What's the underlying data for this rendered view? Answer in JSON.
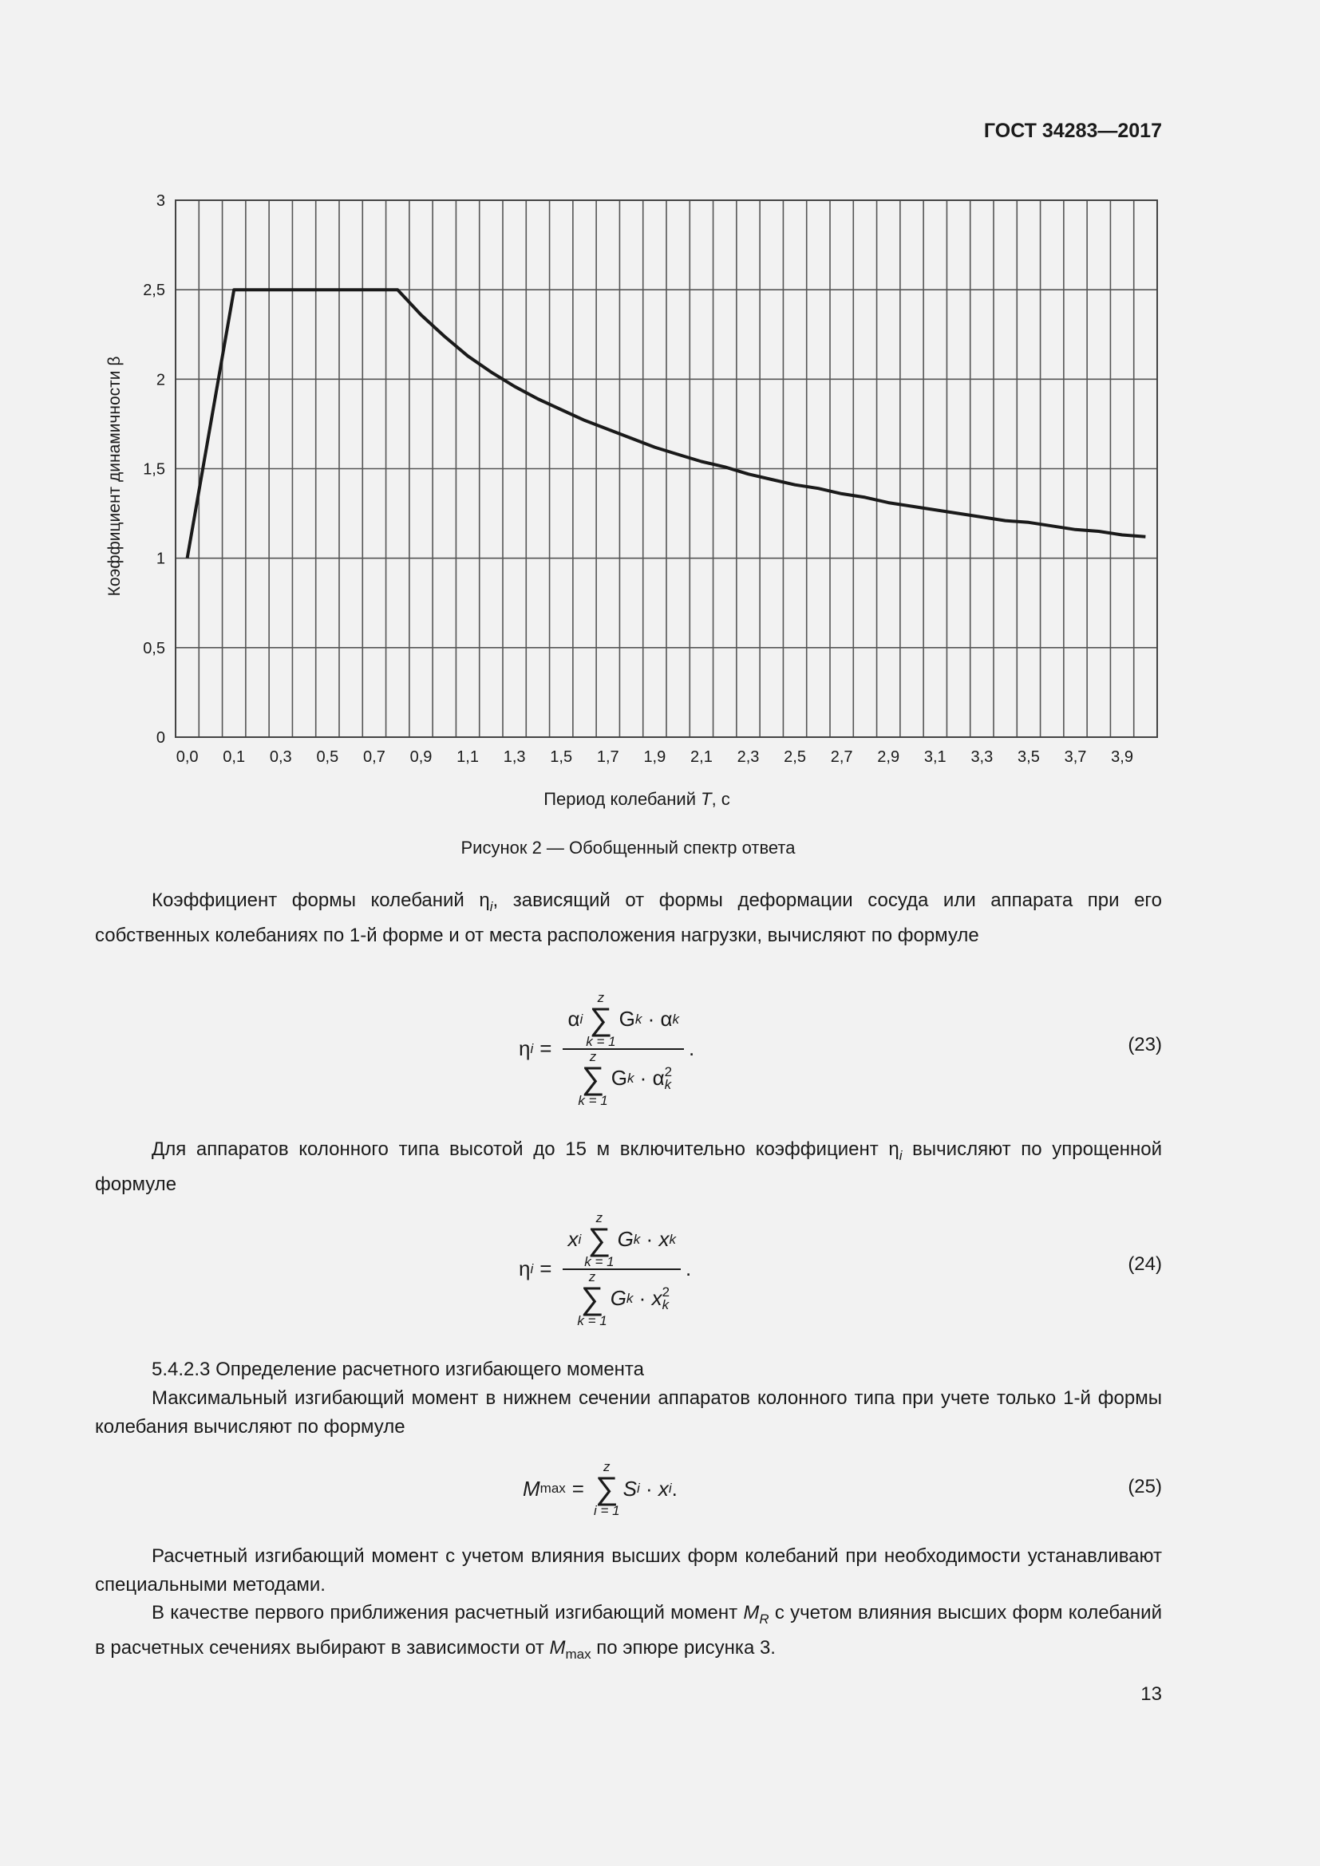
{
  "header": {
    "doc_id": "ГОСТ 34283—2017"
  },
  "figure": {
    "caption": "Рисунок 2 — Обобщенный спектр ответа",
    "chart_data": {
      "type": "line",
      "title": "",
      "xlabel_parts": [
        "Период колебаний ",
        "T",
        ", с"
      ],
      "ylabel": "Коэффициент динамичности β",
      "ylim": [
        0,
        3
      ],
      "yticks": [
        "0",
        "0,5",
        "1",
        "1,5",
        "2",
        "2,5",
        "3"
      ],
      "ytick_values": [
        0,
        0.5,
        1,
        1.5,
        2,
        2.5,
        3
      ],
      "xticks": [
        "0,0",
        "0,1",
        "0,3",
        "0,5",
        "0,7",
        "0,9",
        "1,1",
        "1,3",
        "1,5",
        "1,7",
        "1,9",
        "2,1",
        "2,3",
        "2,5",
        "2,7",
        "2,9",
        "3,1",
        "3,3",
        "3,5",
        "3,7",
        "3,9"
      ],
      "xtick_values": [
        0,
        0.1,
        0.3,
        0.5,
        0.7,
        0.9,
        1.1,
        1.3,
        1.5,
        1.7,
        1.9,
        2.1,
        2.3,
        2.5,
        2.7,
        2.9,
        3.1,
        3.3,
        3.5,
        3.7,
        3.9
      ],
      "grid": true,
      "series": [
        {
          "x": [
            0,
            0.1,
            0.8,
            0.9,
            1.0,
            1.1,
            1.2,
            1.3,
            1.4,
            1.5,
            1.6,
            1.7,
            1.8,
            1.9,
            2.0,
            2.1,
            2.2,
            2.3,
            2.4,
            2.5,
            2.6,
            2.7,
            2.8,
            2.9,
            3.0,
            3.1,
            3.2,
            3.3,
            3.4,
            3.5,
            3.6,
            3.7,
            3.8,
            3.9,
            4.0
          ],
          "y": [
            1,
            2.5,
            2.5,
            2.36,
            2.24,
            2.13,
            2.04,
            1.96,
            1.89,
            1.83,
            1.77,
            1.72,
            1.67,
            1.62,
            1.58,
            1.54,
            1.51,
            1.47,
            1.44,
            1.41,
            1.39,
            1.36,
            1.34,
            1.31,
            1.29,
            1.27,
            1.25,
            1.23,
            1.21,
            1.2,
            1.18,
            1.16,
            1.15,
            1.13,
            1.12
          ],
          "color": "#1a1a1a"
        }
      ]
    }
  },
  "body": {
    "p1": {
      "a": "Коэффициент формы колебаний ",
      "sym": "η",
      "sub": "i",
      "b": ", зависящий от формы деформации сосуда или аппарата при его собственных колебаниях по 1-й форме и от места расположения нагрузки, вычисляют по формуле"
    },
    "eq23": {
      "lhs": "η",
      "lhs_sub": "i",
      "eq": "=",
      "num_a": "α",
      "num_a_sub": "i",
      "sum_top": "z",
      "sum_bottom": "k = 1",
      "sigma": "∑",
      "G": "G",
      "G_sub": "k",
      "dot": "·",
      "num_b": "α",
      "num_b_sub": "k",
      "den_b": "α",
      "den_b_sub": "k",
      "den_b_sup": "2",
      "end": ".",
      "number": "(23)"
    },
    "p2": {
      "a": "Для аппаратов колонного типа высотой до 15 м включительно коэффициент ",
      "sym": "η",
      "sub": "i",
      "b": " вычисляют по упрощенной формуле"
    },
    "eq24": {
      "lhs": "η",
      "lhs_sub": "i",
      "eq": "=",
      "num_a": "x",
      "num_a_sub": "i",
      "sum_top": "z",
      "sum_bottom": "k = 1",
      "sigma": "∑",
      "G": "G",
      "G_sub": "k",
      "dot": "·",
      "num_b": "x",
      "num_b_sub": "k",
      "den_b": "x",
      "den_b_sub": "k",
      "den_b_sup": "2",
      "end": ".",
      "number": "(24)"
    },
    "section": "5.4.2.3 Определение расчетного изгибающего момента",
    "p3": "Максимальный изгибающий момент в нижнем сечении аппаратов колонного типа при учете только 1-й формы колебания вычисляют по формуле",
    "eq25": {
      "lhs": "M",
      "lhs_sub": "max",
      "eq": "=",
      "sum_top": "z",
      "sum_bottom": "i = 1",
      "sigma": "∑",
      "S": "S",
      "S_sub": "i",
      "dot": "·",
      "x": "x",
      "x_sub": "i",
      "end": ".",
      "number": "(25)"
    },
    "p4": "Расчетный изгибающий момент с учетом влияния высших форм колебаний при необходимости устанавливают специальными методами.",
    "p5": {
      "a": "В качестве первого приближения расчетный изгибающий момент ",
      "m": "M",
      "m_sub": "R",
      "b": " с учетом влияния высших форм колебаний в расчетных сечениях выбирают в зависимости от ",
      "m2": "M",
      "m2_sub": "max",
      "c": " по эпюре рисунка 3."
    }
  },
  "page_number": "13"
}
